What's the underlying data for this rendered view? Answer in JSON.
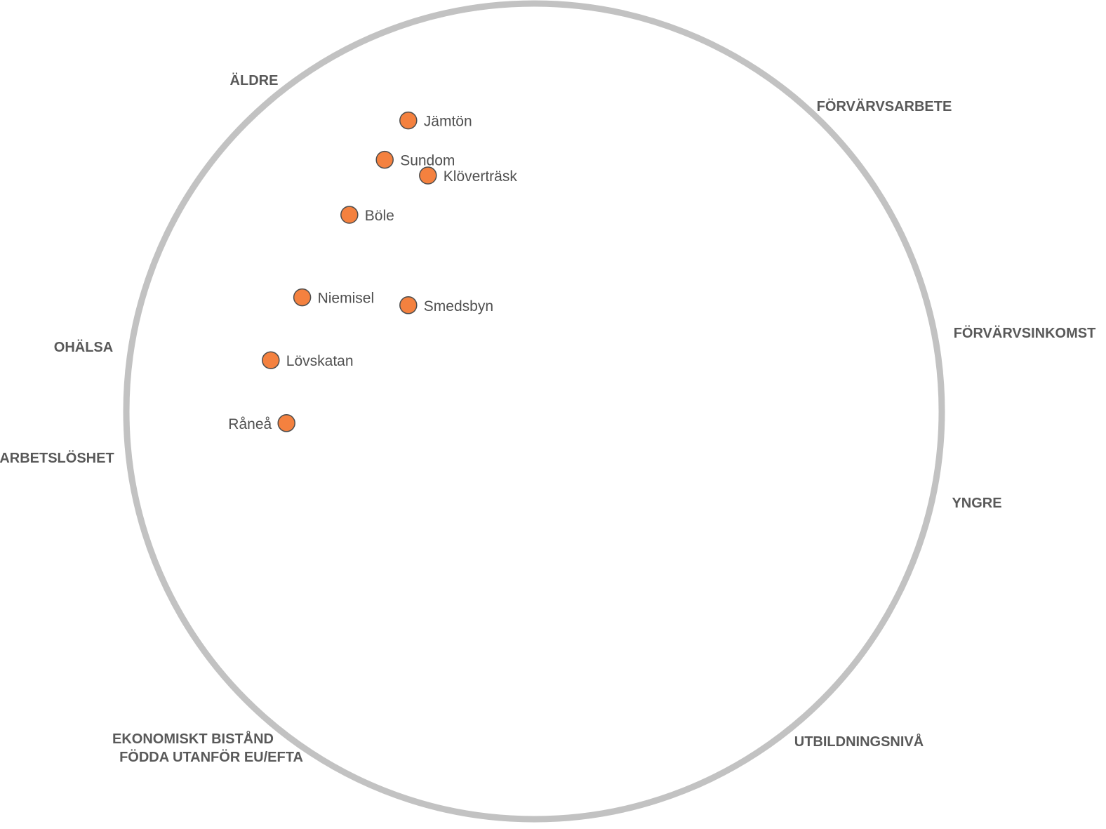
{
  "colors": {
    "ring": "#c2c2c2",
    "axis_text": "#595959",
    "point_fill": "#f4813f",
    "point_stroke": "#4d4d4d",
    "point_text": "#505050"
  },
  "chart_data": {
    "type": "scatter",
    "title": "",
    "xlabel": "",
    "ylabel": "",
    "grid": false,
    "xlim": [
      -1,
      1
    ],
    "ylim": [
      -1,
      1
    ],
    "axis_labels": [
      {
        "id": "aldre",
        "text": "ÄLDRE"
      },
      {
        "id": "forvarvsarbete",
        "text": "FÖRVÄRVSARBETE"
      },
      {
        "id": "forvarvsinkomst",
        "text": "FÖRVÄRVSINKOMST"
      },
      {
        "id": "yngre",
        "text": "YNGRE"
      },
      {
        "id": "utbildningsniva",
        "text": "UTBILDNINGSNIVÅ"
      },
      {
        "id": "ekonomiskt-bistand",
        "text": "EKONOMISKT BISTÅND"
      },
      {
        "id": "fodda-utanfor",
        "text": "FÖDDA UTANFÖR EU/EFTA"
      },
      {
        "id": "arbetsloshet",
        "text": "ARBETSLÖSHET"
      },
      {
        "id": "ohalsa",
        "text": "OHÄLSA"
      }
    ],
    "points": [
      {
        "name": "Jämtön",
        "x": -0.32,
        "y": 0.74,
        "label_side": "right"
      },
      {
        "name": "Sundom",
        "x": -0.38,
        "y": 0.64,
        "label_side": "right"
      },
      {
        "name": "Klöverträsk",
        "x": -0.27,
        "y": 0.6,
        "label_side": "right"
      },
      {
        "name": "Böle",
        "x": -0.47,
        "y": 0.5,
        "label_side": "right"
      },
      {
        "name": "Niemisel",
        "x": -0.59,
        "y": 0.29,
        "label_side": "right"
      },
      {
        "name": "Smedsbyn",
        "x": -0.32,
        "y": 0.27,
        "label_side": "right"
      },
      {
        "name": "Lövskatan",
        "x": -0.67,
        "y": 0.13,
        "label_side": "right"
      },
      {
        "name": "Råneå",
        "x": -0.63,
        "y": -0.03,
        "label_side": "left"
      }
    ]
  }
}
